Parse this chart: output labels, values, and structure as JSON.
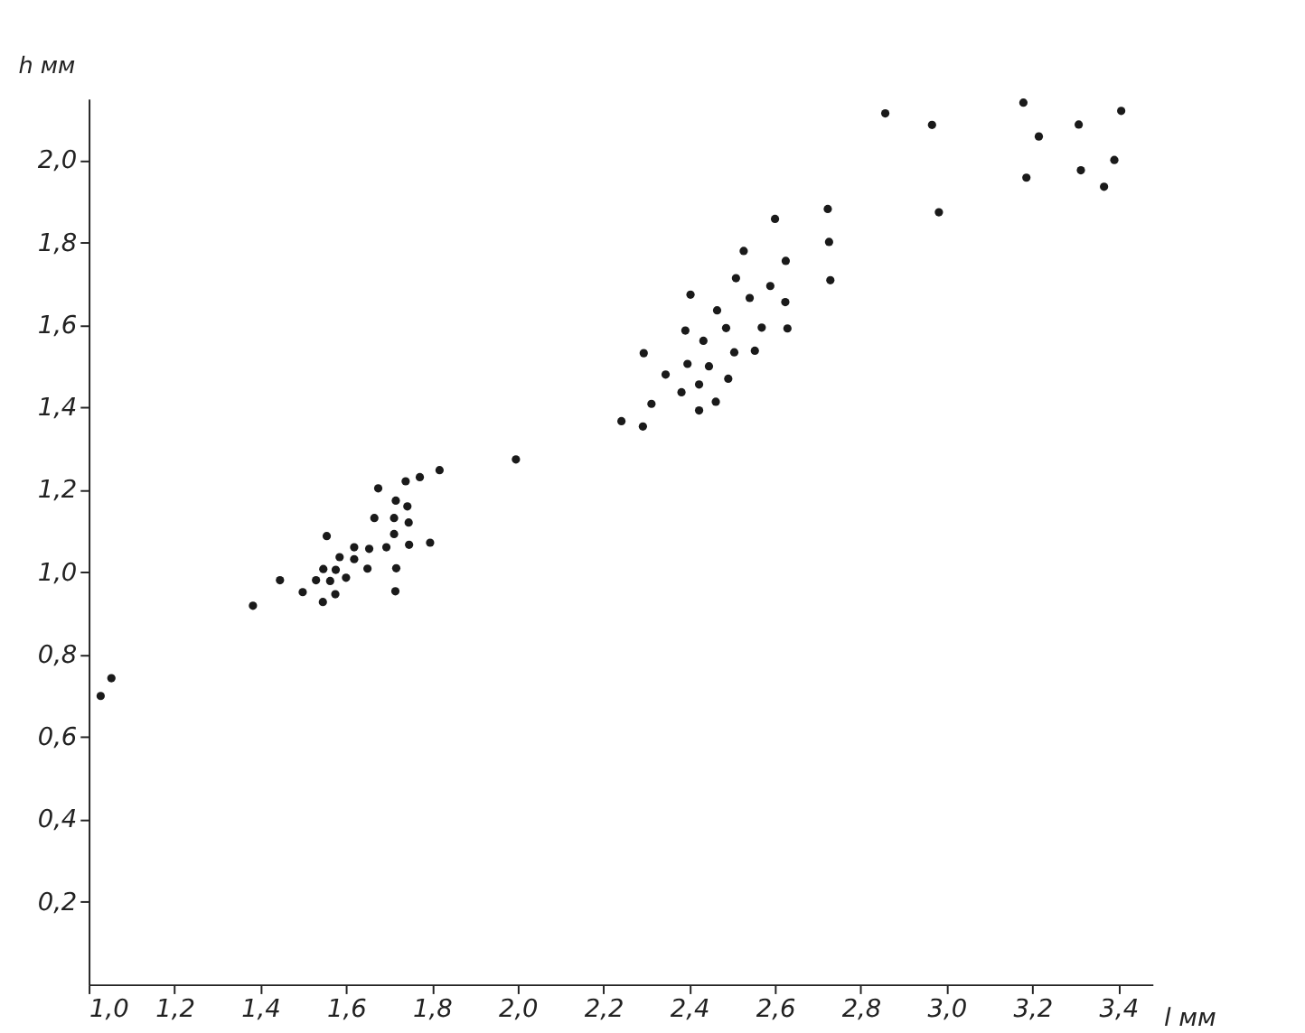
{
  "chart_data": {
    "type": "scatter",
    "xlabel": "l мм",
    "ylabel": "h мм",
    "x": [
      1.028,
      1.053,
      1.383,
      1.446,
      1.499,
      1.546,
      1.53,
      1.563,
      1.575,
      1.547,
      1.576,
      1.6,
      1.585,
      1.619,
      1.619,
      1.65,
      1.654,
      1.694,
      1.717,
      1.715,
      1.747,
      1.796,
      1.712,
      1.712,
      1.666,
      1.746,
      1.716,
      1.743,
      1.675,
      1.739,
      1.772,
      1.818,
      1.555,
      1.996,
      2.242,
      2.292,
      2.312,
      2.294,
      2.345,
      2.382,
      2.423,
      2.462,
      2.423,
      2.396,
      2.446,
      2.491,
      2.433,
      2.391,
      2.486,
      2.505,
      2.553,
      2.569,
      2.629,
      2.465,
      2.541,
      2.403,
      2.624,
      2.509,
      2.589,
      2.729,
      2.625,
      2.527,
      2.726,
      2.6,
      2.723,
      2.982,
      3.186,
      3.313,
      3.367,
      3.391,
      3.215,
      3.308,
      3.179,
      3.407,
      2.857,
      2.966
    ],
    "series": [
      {
        "color": "#1a1a1a",
        "values": [
          0.7,
          0.743,
          0.919,
          0.981,
          0.952,
          0.928,
          0.981,
          0.979,
          0.947,
          1.008,
          1.006,
          0.987,
          1.037,
          1.032,
          1.061,
          1.009,
          1.057,
          1.061,
          1.01,
          0.954,
          1.067,
          1.072,
          1.093,
          1.132,
          1.132,
          1.121,
          1.174,
          1.16,
          1.204,
          1.221,
          1.231,
          1.248,
          1.088,
          1.274,
          1.367,
          1.354,
          1.409,
          1.532,
          1.48,
          1.437,
          1.393,
          1.414,
          1.456,
          1.506,
          1.5,
          1.47,
          1.562,
          1.587,
          1.593,
          1.534,
          1.538,
          1.594,
          1.592,
          1.636,
          1.666,
          1.674,
          1.656,
          1.714,
          1.695,
          1.709,
          1.756,
          1.78,
          1.802,
          1.858,
          1.882,
          1.874,
          1.958,
          1.976,
          1.936,
          2.001,
          2.058,
          2.087,
          2.14,
          2.12,
          2.114,
          2.086
        ]
      }
    ],
    "xlim": [
      1.0,
      3.48
    ],
    "ylim": [
      0,
      2.15
    ],
    "xticks": [
      {
        "value": 1.0,
        "label": "1,0"
      },
      {
        "value": 1.2,
        "label": "1,2"
      },
      {
        "value": 1.4,
        "label": "1,4"
      },
      {
        "value": 1.6,
        "label": "1,6"
      },
      {
        "value": 1.8,
        "label": "1,8"
      },
      {
        "value": 2.0,
        "label": "2,0"
      },
      {
        "value": 2.2,
        "label": "2,2"
      },
      {
        "value": 2.4,
        "label": "2,4"
      },
      {
        "value": 2.6,
        "label": "2,6"
      },
      {
        "value": 2.8,
        "label": "2,8"
      },
      {
        "value": 3.0,
        "label": "3,0"
      },
      {
        "value": 3.2,
        "label": "3,2"
      },
      {
        "value": 3.4,
        "label": "3,4"
      }
    ],
    "yticks": [
      {
        "value": 0.2,
        "label": "0,2"
      },
      {
        "value": 0.4,
        "label": "0,4"
      },
      {
        "value": 0.6,
        "label": "0,6"
      },
      {
        "value": 0.8,
        "label": "0,8"
      },
      {
        "value": 1.0,
        "label": "1,0"
      },
      {
        "value": 1.2,
        "label": "1,2"
      },
      {
        "value": 1.4,
        "label": "1,4"
      },
      {
        "value": 1.6,
        "label": "1,6"
      },
      {
        "value": 1.8,
        "label": "1,8"
      },
      {
        "value": 2.0,
        "label": "2,0"
      }
    ],
    "grid": false,
    "marker": "circle"
  }
}
